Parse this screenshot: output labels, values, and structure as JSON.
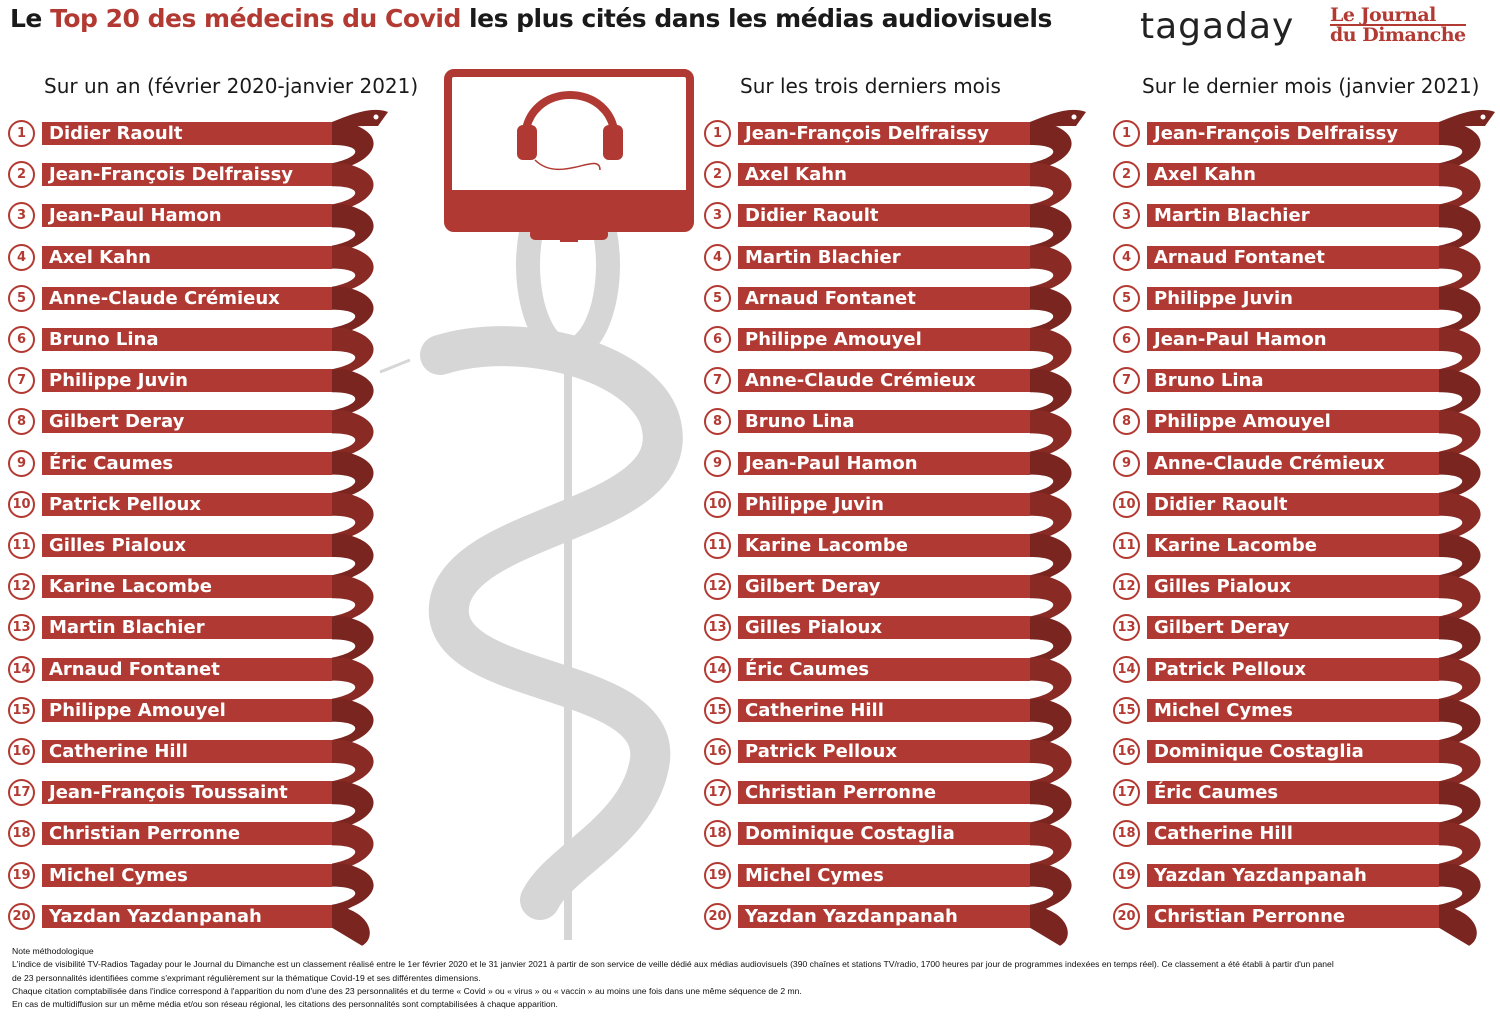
{
  "header": {
    "title_before": "Le ",
    "title_highlight": "Top 20 des médecins du Covid",
    "title_after": " les plus cités dans les médias audiovisuels",
    "logo_tagaday": "tagaday",
    "logo_jdd_line1": "Le Journal",
    "logo_jdd_line2": "du Dimanche"
  },
  "colors": {
    "accent": "#b03a33",
    "accent_dark": "#7a2520",
    "caduceus": "#d6d6d6"
  },
  "columns": [
    {
      "title": "Sur un an (février 2020-janvier 2021)",
      "names": [
        "Didier Raoult",
        "Jean-François Delfraissy",
        "Jean-Paul Hamon",
        "Axel Kahn",
        "Anne-Claude Crémieux",
        "Bruno Lina",
        "Philippe Juvin",
        "Gilbert Deray",
        "Éric Caumes",
        "Patrick Pelloux",
        "Gilles Pialoux",
        "Karine Lacombe",
        "Martin Blachier",
        "Arnaud Fontanet",
        "Philippe Amouyel",
        "Catherine Hill",
        "Jean-François Toussaint",
        "Christian Perronne",
        "Michel Cymes",
        "Yazdan Yazdanpanah"
      ]
    },
    {
      "title": "Sur les trois derniers mois",
      "names": [
        "Jean-François Delfraissy",
        "Axel Kahn",
        "Didier Raoult",
        "Martin Blachier",
        "Arnaud Fontanet",
        "Philippe Amouyel",
        "Anne-Claude Crémieux",
        "Bruno Lina",
        "Jean-Paul Hamon",
        "Philippe Juvin",
        "Karine Lacombe",
        "Gilbert Deray",
        "Gilles Pialoux",
        "Éric Caumes",
        "Catherine Hill",
        "Patrick Pelloux",
        "Christian Perronne",
        "Dominique Costaglia",
        "Michel Cymes",
        "Yazdan Yazdanpanah"
      ]
    },
    {
      "title": "Sur le dernier mois (janvier 2021)",
      "names": [
        "Jean-François Delfraissy",
        "Axel Kahn",
        "Martin Blachier",
        "Arnaud Fontanet",
        "Philippe Juvin",
        "Jean-Paul Hamon",
        "Bruno Lina",
        "Philippe Amouyel",
        "Anne-Claude Crémieux",
        "Didier Raoult",
        "Karine Lacombe",
        "Gilles Pialoux",
        "Gilbert Deray",
        "Patrick Pelloux",
        "Michel Cymes",
        "Dominique Costaglia",
        "Éric Caumes",
        "Catherine Hill",
        "Yazdan Yazdanpanah",
        "Christian Perronne"
      ]
    }
  ],
  "note": {
    "heading": "Note méthodologique",
    "lines": [
      "L'indice de visibilité TV-Radios Tagaday pour le Journal du Dimanche est un classement réalisé entre le 1er février 2020 et le 31 janvier 2021 à partir de son service de veille dédié aux médias audiovisuels (390 chaînes et stations TV/radio, 1700 heures par jour de programmes indexées en temps réel). Ce classement a été établi à partir d'un panel",
      "de 23 personnalités identifiées comme s'exprimant régulièrement sur la thématique Covid-19 et ses différentes dimensions.",
      "Chaque citation comptabilisée dans l'indice correspond à l'apparition du nom d'une des 23 personnalités et du terme « Covid » ou « virus » ou « vaccin » au moins une fois dans une même séquence de 2 mn.",
      "En cas de multidiffusion sur un même média et/ou son réseau régional, les citations des personnalités sont comptabilisées à chaque apparition."
    ]
  }
}
